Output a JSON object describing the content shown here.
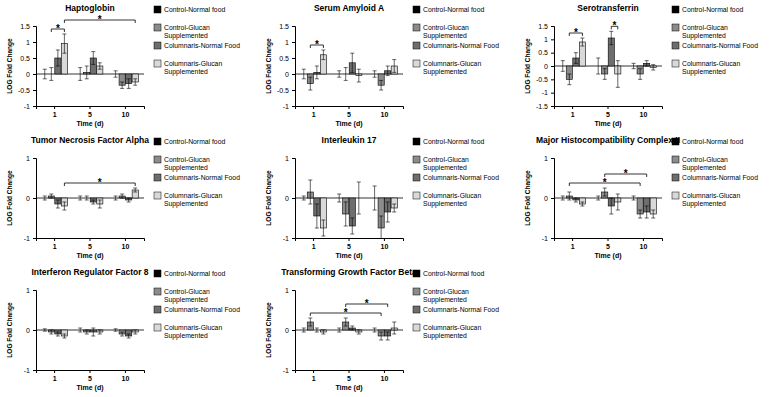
{
  "chart_data": [
    {
      "type": "bar",
      "title": "Haptoglobin",
      "xlabel": "Time (d)",
      "ylabel": "LOG Fold Change",
      "categories": [
        "1",
        "5",
        "10"
      ],
      "ylim": [
        -1,
        1.5
      ],
      "yticks": [
        -1,
        -0.5,
        0,
        0.5,
        1,
        1.5
      ],
      "legend": "right",
      "series": [
        {
          "name": "Control-Normal food",
          "color": "#000000",
          "values": [
            0,
            0,
            0
          ],
          "errors": [
            0.15,
            0.2,
            0.1
          ]
        },
        {
          "name": "Control-Glucan Supplemented",
          "color": "#8c8c8c",
          "values": [
            0,
            0.05,
            -0.35
          ],
          "errors": [
            0.2,
            0.2,
            0.1
          ]
        },
        {
          "name": "Columnaris-Normal Food",
          "color": "#6e6e6e",
          "values": [
            0.5,
            0.5,
            -0.3
          ],
          "errors": [
            0.25,
            0.2,
            0.15
          ]
        },
        {
          "name": "Columnaris-Glucan Supplemented",
          "color": "#d9d9d9",
          "values": [
            0.95,
            0.25,
            -0.25
          ],
          "errors": [
            0.3,
            0.1,
            0.1
          ]
        }
      ],
      "annotations": [
        {
          "text": "*",
          "from": [
            0,
            1
          ],
          "to": [
            0,
            3
          ]
        },
        {
          "text": "*",
          "from": [
            0,
            3
          ],
          "to": [
            2,
            3
          ]
        }
      ]
    },
    {
      "type": "bar",
      "title": "Serum Amyloid A",
      "xlabel": "Time (d)",
      "ylabel": "LOG Fold Change",
      "categories": [
        "1",
        "5",
        "10"
      ],
      "ylim": [
        -1,
        1.5
      ],
      "yticks": [
        -1,
        -0.5,
        0,
        0.5,
        1,
        1.5
      ],
      "legend": "right",
      "series": [
        {
          "name": "Control-Normal food",
          "color": "#000000",
          "values": [
            0,
            0,
            0
          ],
          "errors": [
            0.15,
            0.1,
            0.1
          ]
        },
        {
          "name": "Control-Glucan Supplemented",
          "color": "#8c8c8c",
          "values": [
            -0.3,
            0,
            -0.35
          ],
          "errors": [
            0.2,
            0.2,
            0.15
          ]
        },
        {
          "name": "Columnaris-Normal Food",
          "color": "#6e6e6e",
          "values": [
            0.05,
            0.35,
            0.1
          ],
          "errors": [
            0.2,
            0.3,
            0.15
          ]
        },
        {
          "name": "Columnaris-Glucan Supplemented",
          "color": "#d9d9d9",
          "values": [
            0.6,
            -0.05,
            0.25
          ],
          "errors": [
            0.15,
            0.2,
            0.2
          ]
        }
      ],
      "annotations": [
        {
          "text": "*",
          "from": [
            0,
            1
          ],
          "to": [
            0,
            3
          ]
        }
      ]
    },
    {
      "type": "bar",
      "title": "Serotransferrin",
      "xlabel": "Time (d)",
      "ylabel": "LOG Fold Change",
      "categories": [
        "1",
        "5",
        "10"
      ],
      "ylim": [
        -1.5,
        1.5
      ],
      "yticks": [
        -1.5,
        -1,
        -0.5,
        0,
        0.5,
        1,
        1.5
      ],
      "legend": "right",
      "series": [
        {
          "name": "Control-Normal food",
          "color": "#000000",
          "values": [
            0,
            0,
            0
          ],
          "errors": [
            0.2,
            0.3,
            0.1
          ]
        },
        {
          "name": "Control-Glucan Supplemented",
          "color": "#8c8c8c",
          "values": [
            -0.5,
            -0.3,
            -0.3
          ],
          "errors": [
            0.2,
            0.2,
            0.2
          ]
        },
        {
          "name": "Columnaris-Normal Food",
          "color": "#6e6e6e",
          "values": [
            0.3,
            1.05,
            0.1
          ],
          "errors": [
            0.2,
            0.25,
            0.1
          ]
        },
        {
          "name": "Columnaris-Glucan Supplemented",
          "color": "#d9d9d9",
          "values": [
            0.9,
            -0.3,
            -0.05
          ],
          "errors": [
            0.15,
            0.5,
            0.1
          ]
        }
      ],
      "annotations": [
        {
          "text": "*",
          "from": [
            0,
            1
          ],
          "to": [
            0,
            3
          ]
        },
        {
          "text": "*",
          "from": [
            1,
            2
          ],
          "to": [
            1,
            3
          ]
        }
      ]
    },
    {
      "type": "bar",
      "title": "Tumor Necrosis Factor Alpha",
      "xlabel": "Time (d)",
      "ylabel": "LOG Fold Change",
      "categories": [
        "1",
        "5",
        "10"
      ],
      "ylim": [
        -1,
        1
      ],
      "yticks": [
        -1,
        0,
        1
      ],
      "legend": "right",
      "series": [
        {
          "name": "Control-Normal food",
          "color": "#000000",
          "values": [
            0,
            0,
            0
          ],
          "errors": [
            0.05,
            0.05,
            0.05
          ]
        },
        {
          "name": "Control-Glucan Supplemented",
          "color": "#8c8c8c",
          "values": [
            0.05,
            0,
            0.05
          ],
          "errors": [
            0.05,
            0.05,
            0.05
          ]
        },
        {
          "name": "Columnaris-Normal Food",
          "color": "#6e6e6e",
          "values": [
            -0.15,
            -0.1,
            -0.05
          ],
          "errors": [
            0.1,
            0.05,
            0.05
          ]
        },
        {
          "name": "Columnaris-Glucan Supplemented",
          "color": "#d9d9d9",
          "values": [
            -0.2,
            -0.15,
            0.2
          ],
          "errors": [
            0.1,
            0.1,
            0.05
          ]
        }
      ],
      "annotations": [
        {
          "text": "*",
          "from": [
            0,
            3
          ],
          "to": [
            2,
            3
          ]
        }
      ]
    },
    {
      "type": "bar",
      "title": "Interleukin 17",
      "xlabel": "Time (d)",
      "ylabel": "LOG Fold Change",
      "categories": [
        "1",
        "5",
        "10"
      ],
      "ylim": [
        -1,
        1
      ],
      "yticks": [
        -1,
        0,
        1
      ],
      "legend": "right",
      "series": [
        {
          "name": "Control-Normal food",
          "color": "#000000",
          "values": [
            0,
            0,
            0
          ],
          "errors": [
            0.05,
            0.1,
            0.3
          ]
        },
        {
          "name": "Control-Glucan Supplemented",
          "color": "#8c8c8c",
          "values": [
            0.15,
            -0.4,
            -0.75
          ],
          "errors": [
            0.3,
            0.3,
            0.3
          ]
        },
        {
          "name": "Columnaris-Normal Food",
          "color": "#6e6e6e",
          "values": [
            -0.45,
            -0.7,
            -0.35
          ],
          "errors": [
            0.3,
            0.2,
            0.25
          ]
        },
        {
          "name": "Columnaris-Glucan Supplemented",
          "color": "#d9d9d9",
          "values": [
            -0.75,
            0,
            -0.25
          ],
          "errors": [
            0.2,
            0.4,
            0.1
          ]
        }
      ],
      "annotations": []
    },
    {
      "type": "bar",
      "title": "Major Histocompatibility Complex II",
      "xlabel": "Time (d)",
      "ylabel": "LOG Fold Change",
      "categories": [
        "1",
        "5",
        "10"
      ],
      "ylim": [
        -1,
        1
      ],
      "yticks": [
        -1,
        0,
        1
      ],
      "legend": "right",
      "series": [
        {
          "name": "Control-Normal food",
          "color": "#000000",
          "values": [
            0,
            0,
            0
          ],
          "errors": [
            0.05,
            0.05,
            0.05
          ]
        },
        {
          "name": "Control-Glucan Supplemented",
          "color": "#8c8c8c",
          "values": [
            0.05,
            0.15,
            -0.4
          ],
          "errors": [
            0.1,
            0.1,
            0.1
          ]
        },
        {
          "name": "Columnaris-Normal Food",
          "color": "#6e6e6e",
          "values": [
            -0.05,
            -0.2,
            -0.35
          ],
          "errors": [
            0.05,
            0.2,
            0.15
          ]
        },
        {
          "name": "Columnaris-Glucan Supplemented",
          "color": "#d9d9d9",
          "values": [
            -0.15,
            -0.1,
            -0.4
          ],
          "errors": [
            0.05,
            0.2,
            0.1
          ]
        }
      ],
      "annotations": [
        {
          "text": "*",
          "from": [
            0,
            1
          ],
          "to": [
            2,
            1
          ]
        },
        {
          "text": "*",
          "from": [
            1,
            1
          ],
          "to": [
            2,
            2
          ]
        }
      ]
    },
    {
      "type": "bar",
      "title": "Interferon Regulator Factor 8",
      "xlabel": "Time (d)",
      "ylabel": "LOG Fold Change",
      "categories": [
        "1",
        "5",
        "10"
      ],
      "ylim": [
        -1,
        1
      ],
      "yticks": [
        -1,
        0,
        1
      ],
      "legend": "right",
      "series": [
        {
          "name": "Control-Normal food",
          "color": "#000000",
          "values": [
            0,
            0,
            0
          ],
          "errors": [
            0.03,
            0.05,
            0.03
          ]
        },
        {
          "name": "Control-Glucan Supplemented",
          "color": "#8c8c8c",
          "values": [
            -0.05,
            -0.05,
            -0.1
          ],
          "errors": [
            0.05,
            0.05,
            0.05
          ]
        },
        {
          "name": "Columnaris-Normal Food",
          "color": "#6e6e6e",
          "values": [
            -0.1,
            -0.05,
            -0.15
          ],
          "errors": [
            0.05,
            0.1,
            0.05
          ]
        },
        {
          "name": "Columnaris-Glucan Supplemented",
          "color": "#d9d9d9",
          "values": [
            -0.15,
            -0.05,
            -0.05
          ],
          "errors": [
            0.05,
            0.05,
            0.05
          ]
        }
      ],
      "annotations": []
    },
    {
      "type": "bar",
      "title": "Transforming Growth Factor Beta",
      "xlabel": "Time (d)",
      "ylabel": "LOG Fold Change",
      "categories": [
        "1",
        "5",
        "10"
      ],
      "ylim": [
        -1,
        1
      ],
      "yticks": [
        -1,
        0,
        1
      ],
      "legend": "right",
      "series": [
        {
          "name": "Control-Normal food",
          "color": "#000000",
          "values": [
            0,
            0,
            0
          ],
          "errors": [
            0.05,
            0.05,
            0.05
          ]
        },
        {
          "name": "Control-Glucan Supplemented",
          "color": "#8c8c8c",
          "values": [
            0.2,
            0.2,
            -0.15
          ],
          "errors": [
            0.1,
            0.1,
            0.1
          ]
        },
        {
          "name": "Columnaris-Normal Food",
          "color": "#6e6e6e",
          "values": [
            0,
            0.05,
            -0.15
          ],
          "errors": [
            0.05,
            0.05,
            0.1
          ]
        },
        {
          "name": "Columnaris-Glucan Supplemented",
          "color": "#d9d9d9",
          "values": [
            -0.05,
            -0.05,
            0.05
          ],
          "errors": [
            0.05,
            0.05,
            0.15
          ]
        }
      ],
      "annotations": [
        {
          "text": "*",
          "from": [
            0,
            1
          ],
          "to": [
            2,
            1
          ]
        },
        {
          "text": "*",
          "from": [
            1,
            1
          ],
          "to": [
            2,
            2
          ]
        }
      ]
    }
  ]
}
